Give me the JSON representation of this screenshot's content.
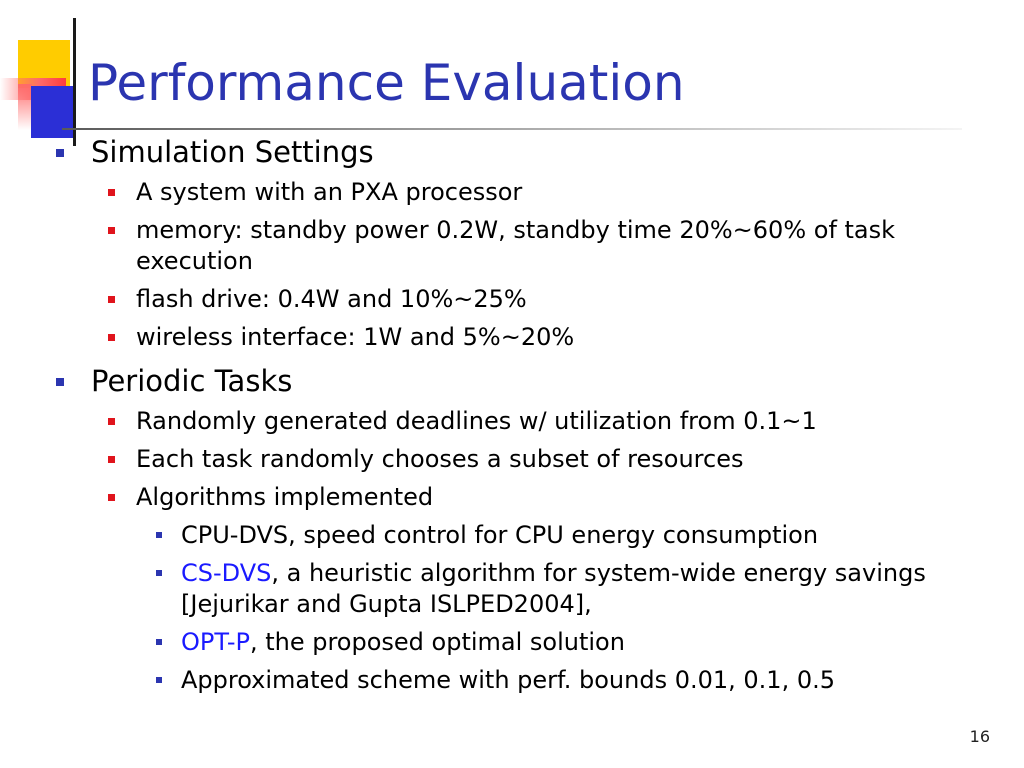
{
  "title": "Performance Evaluation",
  "colors": {
    "title": "#2b35b0",
    "bullet_level1": "#2b35b0",
    "bullet_level2": "#e0141c",
    "bullet_level3": "#2b35b0",
    "link": "#1a1aff",
    "deco_yellow": "#ffcc00",
    "deco_blue": "#2b2fd6",
    "deco_red": "#ff3b3b"
  },
  "sections": [
    {
      "heading": "Simulation Settings",
      "items": [
        {
          "text": "A system with an PXA processor"
        },
        {
          "text": "memory: standby power 0.2W, standby time 20%~60% of task",
          "text_cont": "execution"
        },
        {
          "text": "flash drive: 0.4W and 10%~25%"
        },
        {
          "text": "wireless interface: 1W and 5%~20%"
        }
      ]
    },
    {
      "heading": "Periodic Tasks",
      "items": [
        {
          "text": "Randomly generated deadlines w/ utilization from 0.1~1"
        },
        {
          "text": "Each task randomly chooses a subset of resources"
        },
        {
          "text": "Algorithms implemented"
        }
      ],
      "subitems": [
        {
          "text": "CPU-DVS, speed control for CPU energy consumption"
        },
        {
          "link": "CS-DVS",
          "text": ", a heuristic algorithm for system-wide energy savings",
          "text_cont": "[Jejurikar and Gupta ISLPED2004],"
        },
        {
          "link": "OPT-P",
          "text": ", the proposed optimal solution"
        },
        {
          "text": "Approximated scheme with perf. bounds 0.01, 0.1, 0.5"
        }
      ]
    }
  ],
  "page_number": "16"
}
